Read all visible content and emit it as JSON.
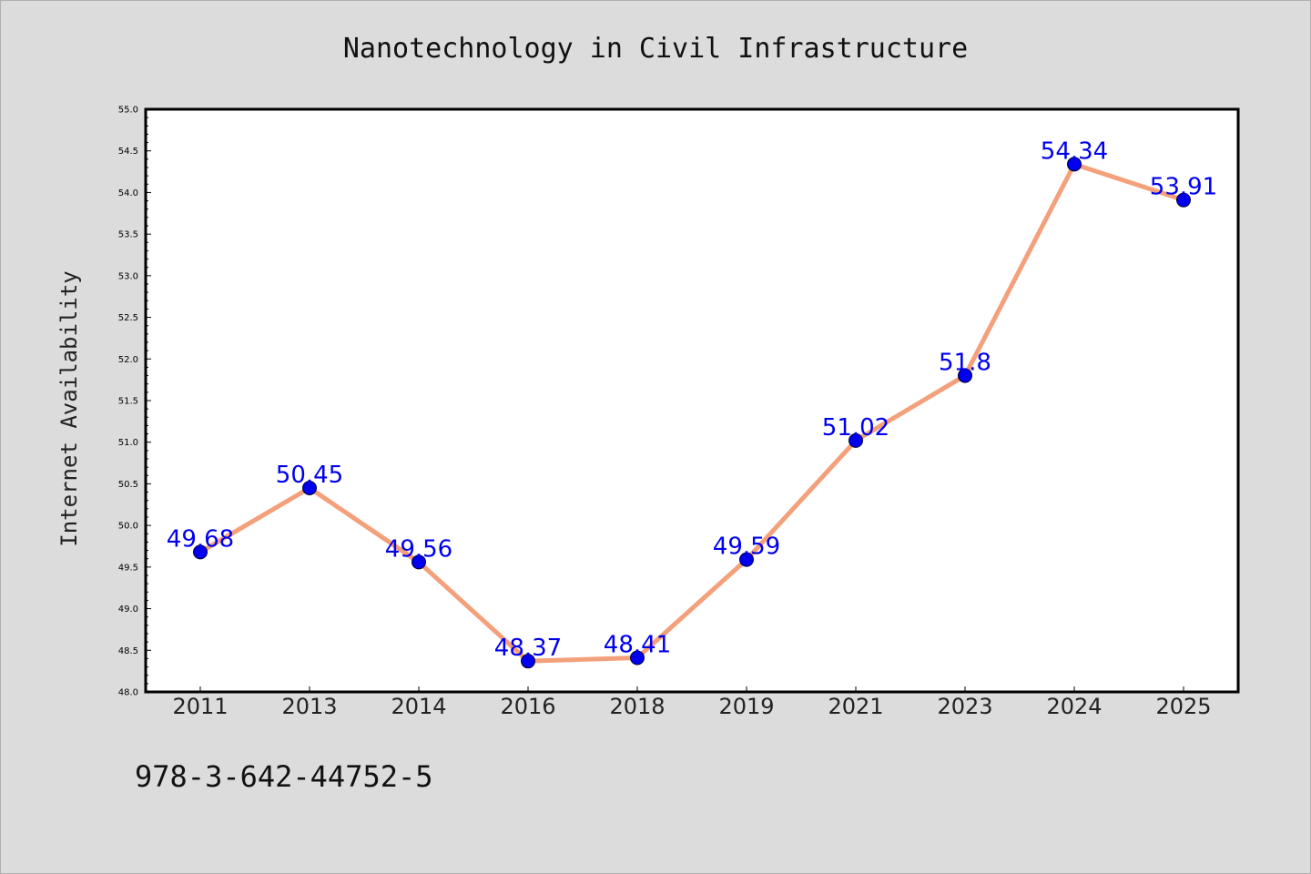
{
  "chart_data": {
    "type": "line",
    "title": "Nanotechnology in Civil Infrastructure",
    "xlabel": "",
    "ylabel": "Internet Availability",
    "categories": [
      "2011",
      "2013",
      "2014",
      "2016",
      "2018",
      "2019",
      "2021",
      "2023",
      "2024",
      "2025"
    ],
    "series": [
      {
        "values": [
          49.68,
          50.45,
          49.56,
          48.37,
          48.41,
          49.59,
          51.02,
          51.8,
          54.34,
          53.91
        ],
        "data_labels": [
          "49.68",
          "50.45",
          "49.56",
          "48.37",
          "48.41",
          "49.59",
          "51.02",
          "51.8",
          "54.34",
          "53.91"
        ],
        "line_color": "#f4a07a",
        "marker_color": "#0000ee"
      }
    ],
    "ylim": [
      48.0,
      55.0
    ],
    "yticks": [
      "48.0",
      "48.5",
      "49.0",
      "49.5",
      "50.0",
      "50.5",
      "51.0",
      "51.5",
      "52.0",
      "52.5",
      "53.0",
      "53.5",
      "54.0",
      "54.5",
      "55.0"
    ],
    "grid": false,
    "legend": "none",
    "label_color": "#0000ee"
  },
  "footer": {
    "code": "978-3-642-44752-5"
  },
  "colors": {
    "background": "#dcdcdc",
    "plot_area": "#ffffff",
    "axis": "#000000"
  }
}
